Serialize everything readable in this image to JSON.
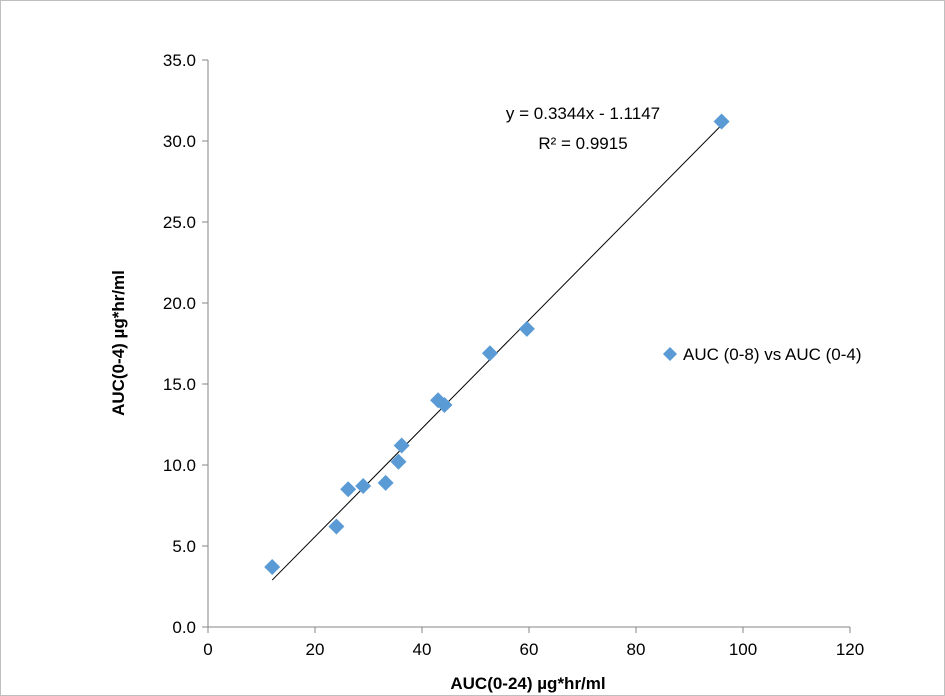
{
  "chart_data": {
    "type": "scatter",
    "xlabel": "AUC(0-24) µg*hr/ml",
    "ylabel": "AUC(0-4)  µg*hr/ml",
    "xlim": [
      0,
      120
    ],
    "ylim": [
      0,
      35
    ],
    "x_ticks": [
      "0",
      "20",
      "40",
      "60",
      "80",
      "100",
      "120"
    ],
    "y_ticks": [
      "0.0",
      "5.0",
      "10.0",
      "15.0",
      "20.0",
      "25.0",
      "30.0",
      "35.0"
    ],
    "grid": false,
    "legend_position": "right",
    "marker_color": "#5b9bd5",
    "trendline_color": "#000000",
    "series": [
      {
        "name": "AUC (0-8) vs AUC (0-4)",
        "x": [
          12,
          24,
          26.2,
          29,
          33.2,
          35.6,
          36.2,
          43,
          44.2,
          52.7,
          59.6,
          96
        ],
        "y": [
          3.7,
          6.2,
          8.5,
          8.7,
          8.9,
          10.2,
          11.2,
          14.0,
          13.7,
          16.9,
          18.4,
          31.2
        ]
      }
    ],
    "trendline": {
      "slope": 0.3344,
      "intercept": -1.1147,
      "x_range": [
        12,
        96
      ],
      "equation": "y = 0.3344x - 1.1147",
      "r_squared": "R² = 0.9915"
    }
  }
}
